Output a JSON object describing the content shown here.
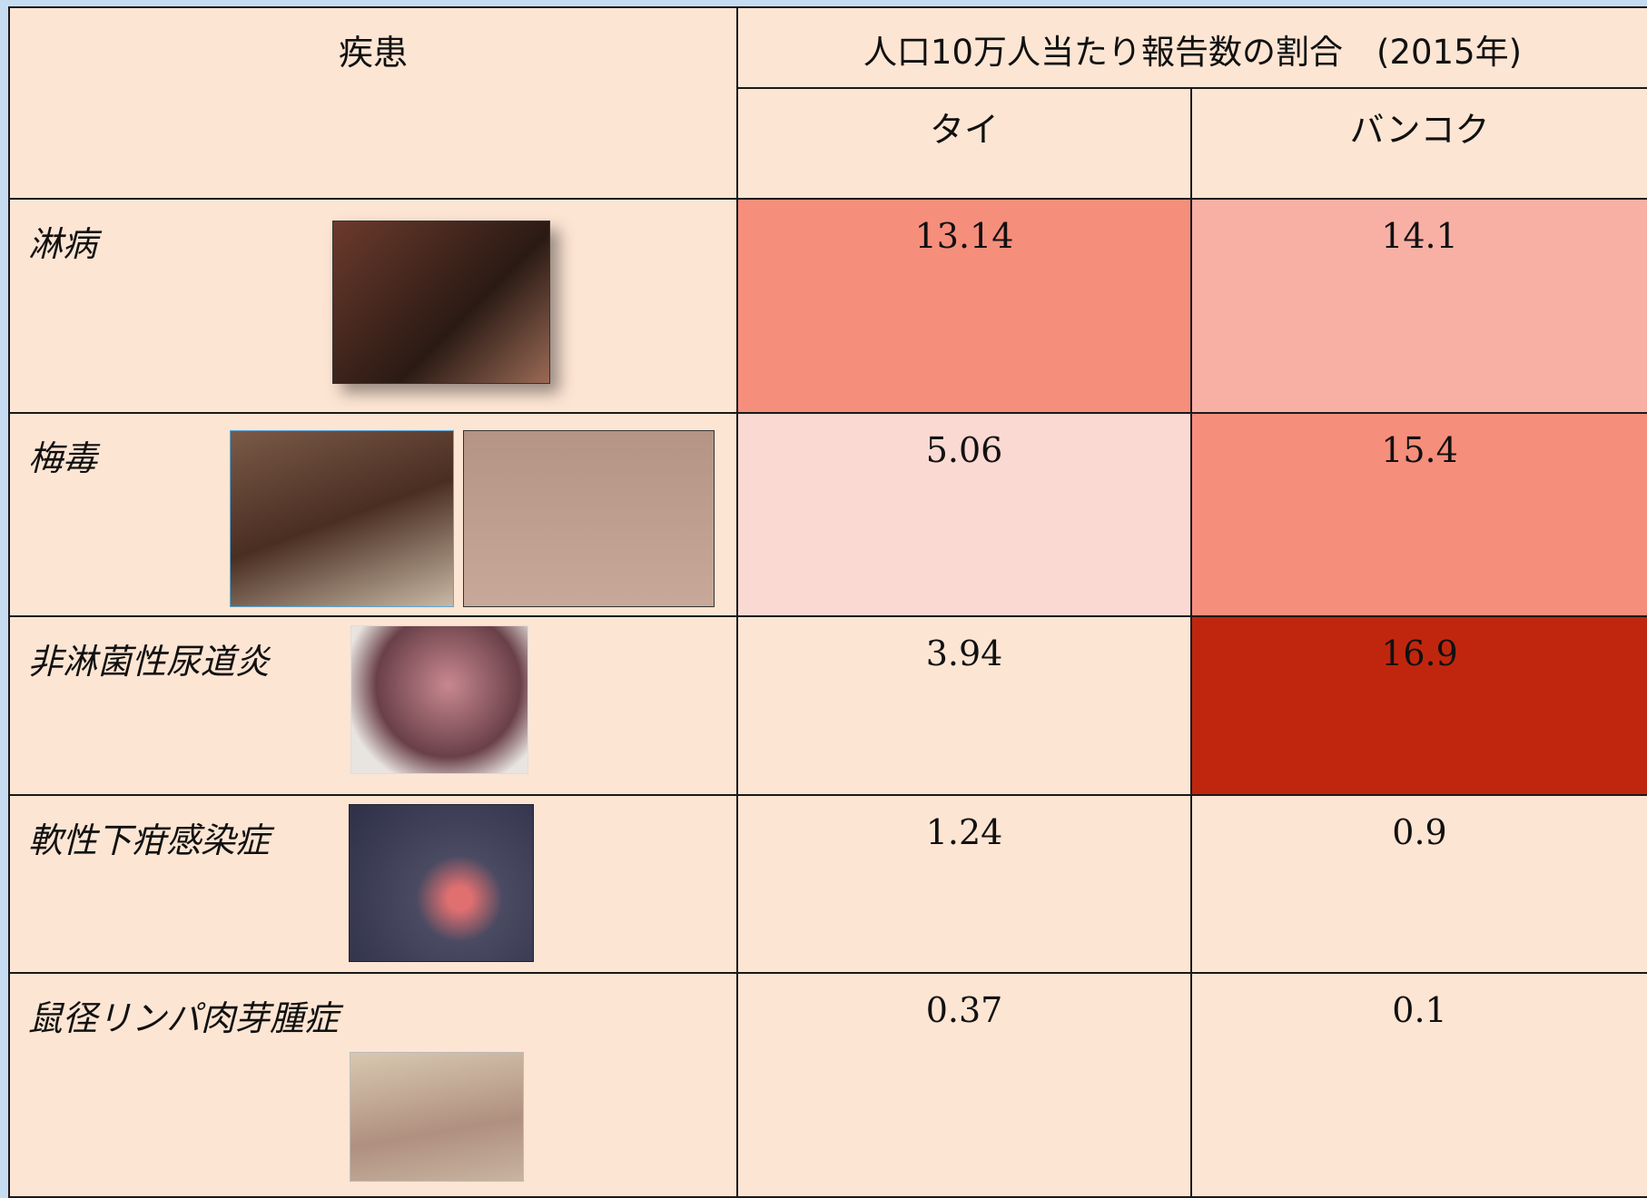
{
  "header": {
    "disease": "疾患",
    "rate_title": "人口10万人当たり報告数の割合　(2015年)",
    "columns": [
      "タイ",
      "バンコク"
    ]
  },
  "rows": [
    {
      "disease": "淋病",
      "thailand": "13.14",
      "bangkok": "14.1"
    },
    {
      "disease": "梅毒",
      "thailand": "5.06",
      "bangkok": "15.4"
    },
    {
      "disease": "非淋菌性尿道炎",
      "thailand": "3.94",
      "bangkok": "16.9"
    },
    {
      "disease": "軟性下疳感染症",
      "thailand": "1.24",
      "bangkok": "0.9"
    },
    {
      "disease": "鼠径リンパ肉芽腫症",
      "thailand": "0.37",
      "bangkok": "0.1"
    }
  ]
}
